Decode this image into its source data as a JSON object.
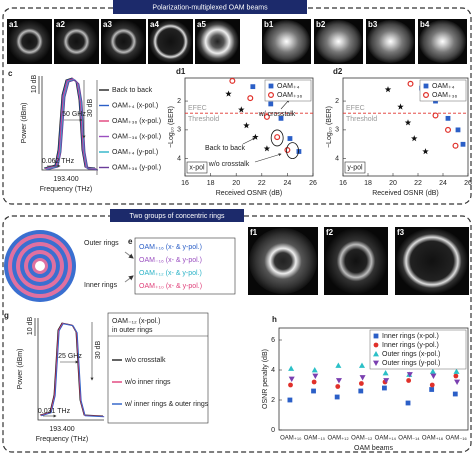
{
  "sections": [
    {
      "title": "Polarization-multiplexed OAM beams"
    },
    {
      "title": "Two groups of concentric rings"
    }
  ],
  "panels": {
    "a": [
      "a1",
      "a2",
      "a3",
      "a4",
      "a5"
    ],
    "b": [
      "b1",
      "b2",
      "b3",
      "b4"
    ],
    "f": [
      "f1",
      "f2",
      "f3"
    ]
  },
  "panel_c": {
    "label": "c",
    "y_label": "Power (dBm)",
    "scale": "10 dB",
    "x_label": "Frequency (THz)",
    "center": "193.400",
    "width": "0.062 THz",
    "bandwidth": "50 GHz",
    "suppression": "30 dB",
    "legend": [
      {
        "name": "Back to back",
        "color": "#222222"
      },
      {
        "name": "OAM₊₄ (x-pol.)",
        "color": "#2b5fc7"
      },
      {
        "name": "OAM₊₃₆ (x-pol.)",
        "color": "#e0407a"
      },
      {
        "name": "OAM₋₃₆ (x-pol.)",
        "color": "#9a4fc0"
      },
      {
        "name": "OAM₊₄ (y-pol.)",
        "color": "#2bb3c7"
      },
      {
        "name": "OAM₊₃₆ (y-pol.)",
        "color": "#6a3d9a"
      }
    ]
  },
  "panel_e": {
    "label": "e",
    "outer": "Outer rings",
    "inner": "Inner rings",
    "items": [
      {
        "text": "OAM₊₁₆ (x- & y-pol.)",
        "color": "#2b5fc7"
      },
      {
        "text": "OAM₋₁₆ (x- & y-pol.)",
        "color": "#9a4fc0"
      },
      {
        "text": "OAM₊₁₂ (x- & y-pol.)",
        "color": "#2bb3c7"
      },
      {
        "text": "OAM₊₁₀ (x- & y-pol.)",
        "color": "#e0407a"
      }
    ]
  },
  "panel_g": {
    "label": "g",
    "y_label": "Power (dBm)",
    "scale": "10 dB",
    "x_label": "Frequency (THz)",
    "center": "193.400",
    "width": "0.031 THz",
    "bandwidth": "25 GHz",
    "suppression": "30 dB",
    "legend_title": [
      "OAM₋₁₂ (x-pol.)",
      "in outer rings"
    ],
    "legend": [
      {
        "name": "w/o crosstalk",
        "color": "#222222"
      },
      {
        "name": "w/o inner rings",
        "color": "#e0407a"
      },
      {
        "name": "w/ inner rings & outer rings",
        "color": "#2b5fc7"
      }
    ]
  },
  "chart_data": [
    {
      "type": "scatter",
      "panel_label": "d1",
      "x_label": "Received OSNR (dB)",
      "y_label": "−Log₁₀ (BER)",
      "xlim": [
        16,
        26
      ],
      "xticks": [
        16,
        18,
        20,
        22,
        24,
        26
      ],
      "ylim": [
        4.6,
        1.2
      ],
      "yticks": [
        2,
        3,
        4
      ],
      "threshold": 2.42,
      "threshold_labels": [
        "EFEC",
        "Threshold"
      ],
      "pol": "x-pol",
      "legend": "upper right",
      "annotations": [
        "w/ crosstalk",
        "Back to back",
        "w/o crosstalk"
      ],
      "series": [
        {
          "name": "OAM₊₄",
          "color": "#2b5fc7",
          "marker": "square",
          "x": [
            21.3,
            22.7,
            23.5,
            24.2,
            24.9
          ],
          "values": [
            1.5,
            2.1,
            2.6,
            3.3,
            3.75
          ]
        },
        {
          "name": "OAM₊₃₆",
          "color": "#e0302a",
          "marker": "circle-open",
          "x": [
            19.7,
            21.1,
            22.4,
            23.2,
            24.0
          ],
          "values": [
            1.3,
            1.9,
            2.55,
            3.25,
            3.7
          ]
        },
        {
          "color": "#111111",
          "marker": "star",
          "x": [
            19.4,
            20.4,
            20.8,
            21.5,
            22.4
          ],
          "values": [
            1.75,
            2.3,
            2.85,
            3.25,
            3.65
          ]
        }
      ]
    },
    {
      "type": "scatter",
      "panel_label": "d2",
      "x_label": "Received OSNR (dB)",
      "y_label": "−Log₁₀ (BER)",
      "xlim": [
        16,
        26
      ],
      "xticks": [
        16,
        18,
        20,
        22,
        24,
        26
      ],
      "ylim": [
        4.6,
        1.2
      ],
      "yticks": [
        2,
        3,
        4
      ],
      "threshold": 2.42,
      "threshold_labels": [
        "EFEC",
        "Threshold"
      ],
      "pol": "y-pol",
      "legend": "upper right",
      "series": [
        {
          "name": "OAM₊₄",
          "color": "#2b5fc7",
          "marker": "square",
          "x": [
            22.3,
            23.4,
            24.4,
            25.2,
            25.6
          ],
          "values": [
            1.55,
            2.0,
            2.6,
            3.0,
            3.5
          ]
        },
        {
          "name": "OAM₊₃₆",
          "color": "#e0302a",
          "marker": "circle-open",
          "x": [
            21.4,
            22.4,
            23.4,
            24.4,
            25.0
          ],
          "values": [
            1.4,
            1.9,
            2.5,
            3.0,
            3.55
          ]
        },
        {
          "color": "#111111",
          "marker": "star",
          "x": [
            19.6,
            20.6,
            21.2,
            21.7,
            22.6
          ],
          "values": [
            1.6,
            2.2,
            2.75,
            3.3,
            3.75
          ]
        }
      ]
    },
    {
      "type": "dot",
      "panel_label": "h",
      "x_label": "OAM beams",
      "y_label": "OSNR penalty (dB)",
      "categories": [
        "OAM₊₁₀",
        "OAM₋₁₀",
        "OAM₊₁₂",
        "OAM₋₁₂",
        "OAM₊₁₄",
        "OAM₋₁₄",
        "OAM₊₁₆",
        "OAM₋₁₆"
      ],
      "ylim": [
        0,
        6.8
      ],
      "yticks": [
        0,
        2,
        4,
        6
      ],
      "legend": "upper right",
      "series": [
        {
          "name": "Inner rings (x-pol.)",
          "color": "#2b5fc7",
          "marker": "square",
          "values": [
            2.0,
            2.6,
            2.2,
            2.6,
            2.8,
            1.8,
            2.7,
            2.4
          ]
        },
        {
          "name": "Inner rings (y-pol.)",
          "color": "#e0302a",
          "marker": "circle",
          "values": [
            3.0,
            3.2,
            2.9,
            3.1,
            3.2,
            3.3,
            3.0,
            3.6
          ]
        },
        {
          "name": "Outer rings (x-pol.)",
          "color": "#2bc0c7",
          "marker": "triangle",
          "values": [
            4.1,
            4.0,
            4.3,
            4.3,
            3.8,
            3.7,
            3.9,
            3.9
          ]
        },
        {
          "name": "Outer rings (y-pol.)",
          "color": "#7a3fb0",
          "marker": "triangle-down",
          "values": [
            3.4,
            3.6,
            3.3,
            3.5,
            3.3,
            3.7,
            3.6,
            3.2
          ]
        }
      ]
    }
  ]
}
